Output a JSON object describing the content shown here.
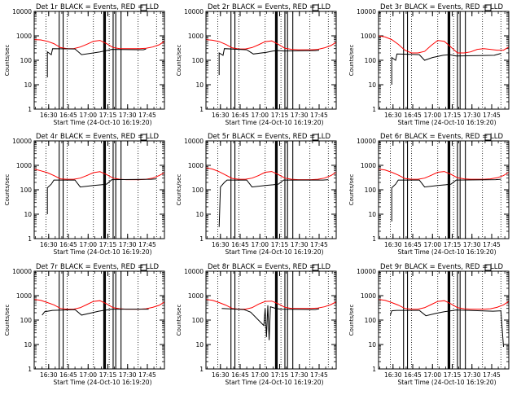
{
  "figure": {
    "ylabel": "Counts/sec",
    "xlabel": "Start Time (24-Oct-10 16:19:20)",
    "legend_text": "BLACK = Events, RED = LLD",
    "colors": {
      "events": "#000000",
      "lld": "#ff0000",
      "axes": "#000000",
      "background": "#ffffff"
    },
    "y_scale": "log"
  },
  "panels": [
    {
      "title": "Det 1r"
    },
    {
      "title": "Det 2r"
    },
    {
      "title": "Det 3r"
    },
    {
      "title": "Det 4r"
    },
    {
      "title": "Det 5r"
    },
    {
      "title": "Det 6r"
    },
    {
      "title": "Det 7r"
    },
    {
      "title": "Det 8r"
    },
    {
      "title": "Det 9r"
    }
  ],
  "chart_data": {
    "type": "line",
    "y_scale": "log",
    "ylim": [
      1,
      10000
    ],
    "xlim": [
      "16:19",
      "17:58"
    ],
    "x_ticks": [
      "16:30",
      "16:45",
      "17:00",
      "17:15",
      "17:30",
      "17:45"
    ],
    "y_ticks": [
      "1",
      "10",
      "100",
      "1000",
      "10000"
    ],
    "series": [
      {
        "name": "Events",
        "color": "#000000"
      },
      {
        "name": "LLD",
        "color": "#ff0000"
      }
    ],
    "lld_x": [
      "16:19",
      "16:24",
      "16:29",
      "16:34",
      "16:39",
      "16:44",
      "16:49",
      "16:54",
      "16:59",
      "17:04",
      "17:09",
      "17:14",
      "17:19",
      "17:24",
      "17:29",
      "17:34",
      "17:39",
      "17:44",
      "17:49",
      "17:54",
      "17:58"
    ],
    "lld": [
      [
        700,
        680,
        600,
        480,
        330,
        300,
        300,
        350,
        450,
        600,
        650,
        480,
        330,
        300,
        300,
        300,
        300,
        310,
        350,
        430,
        600
      ],
      [
        700,
        660,
        580,
        450,
        320,
        290,
        290,
        330,
        430,
        580,
        620,
        450,
        310,
        280,
        270,
        270,
        270,
        280,
        320,
        400,
        550
      ],
      [
        1000,
        900,
        700,
        450,
        260,
        200,
        200,
        230,
        400,
        650,
        600,
        350,
        200,
        200,
        220,
        280,
        300,
        280,
        260,
        260,
        350
      ],
      [
        700,
        600,
        500,
        380,
        280,
        270,
        270,
        300,
        380,
        500,
        550,
        420,
        300,
        270,
        260,
        260,
        260,
        270,
        300,
        380,
        500
      ],
      [
        800,
        700,
        550,
        400,
        290,
        270,
        270,
        300,
        380,
        520,
        560,
        420,
        300,
        270,
        260,
        260,
        260,
        270,
        300,
        380,
        520
      ],
      [
        700,
        640,
        520,
        400,
        290,
        270,
        270,
        300,
        390,
        520,
        560,
        430,
        310,
        280,
        270,
        270,
        270,
        280,
        310,
        380,
        520
      ],
      [
        700,
        640,
        520,
        420,
        300,
        280,
        280,
        320,
        430,
        580,
        620,
        460,
        320,
        290,
        280,
        280,
        280,
        290,
        330,
        400,
        550
      ],
      [
        700,
        640,
        520,
        410,
        300,
        280,
        280,
        320,
        450,
        580,
        600,
        460,
        330,
        300,
        300,
        300,
        300,
        310,
        350,
        430,
        560
      ],
      [
        700,
        640,
        520,
        410,
        300,
        280,
        280,
        320,
        430,
        580,
        620,
        460,
        320,
        290,
        280,
        280,
        280,
        290,
        330,
        420,
        580
      ]
    ],
    "events": [
      [
        [
          "16:29",
          20
        ],
        [
          "16:29",
          220
        ],
        [
          "16:32",
          170
        ],
        [
          "16:33",
          300
        ],
        [
          "16:50",
          290
        ],
        [
          "16:55",
          170
        ],
        [
          "17:04",
          200
        ],
        [
          "17:09",
          220
        ],
        [
          "17:14",
          250
        ],
        [
          "17:18",
          280
        ],
        [
          "17:42",
          270
        ],
        [
          "17:44",
          290
        ]
      ],
      [
        [
          "16:29",
          25
        ],
        [
          "16:29",
          200
        ],
        [
          "16:32",
          160
        ],
        [
          "16:33",
          300
        ],
        [
          "16:50",
          270
        ],
        [
          "16:55",
          180
        ],
        [
          "17:05",
          210
        ],
        [
          "17:10",
          240
        ],
        [
          "17:14",
          250
        ],
        [
          "17:18",
          240
        ],
        [
          "17:42",
          250
        ],
        [
          "17:45",
          260
        ]
      ],
      [
        [
          "16:29",
          10
        ],
        [
          "16:29",
          130
        ],
        [
          "16:32",
          100
        ],
        [
          "16:33",
          180
        ],
        [
          "16:50",
          170
        ],
        [
          "16:54",
          100
        ],
        [
          "17:00",
          130
        ],
        [
          "17:08",
          160
        ],
        [
          "17:13",
          170
        ],
        [
          "17:18",
          150
        ],
        [
          "17:47",
          160
        ],
        [
          "17:52",
          190
        ]
      ],
      [
        [
          "16:29",
          10
        ],
        [
          "16:29",
          120
        ],
        [
          "16:32",
          170
        ],
        [
          "16:34",
          250
        ],
        [
          "16:50",
          250
        ],
        [
          "16:54",
          130
        ],
        [
          "17:04",
          150
        ],
        [
          "17:10",
          160
        ],
        [
          "17:14",
          170
        ],
        [
          "17:18",
          260
        ],
        [
          "17:48",
          270
        ],
        [
          "17:52",
          280
        ]
      ],
      [
        [
          "16:29",
          3
        ],
        [
          "16:30",
          130
        ],
        [
          "16:33",
          200
        ],
        [
          "16:35",
          250
        ],
        [
          "16:50",
          250
        ],
        [
          "16:54",
          130
        ],
        [
          "17:04",
          150
        ],
        [
          "17:10",
          160
        ],
        [
          "17:14",
          170
        ],
        [
          "17:18",
          250
        ],
        [
          "17:48",
          250
        ],
        [
          "17:52",
          260
        ]
      ],
      [
        [
          "16:29",
          5
        ],
        [
          "16:29",
          120
        ],
        [
          "16:32",
          170
        ],
        [
          "16:34",
          250
        ],
        [
          "16:50",
          250
        ],
        [
          "16:54",
          130
        ],
        [
          "17:04",
          150
        ],
        [
          "17:10",
          160
        ],
        [
          "17:14",
          170
        ],
        [
          "17:18",
          250
        ],
        [
          "17:48",
          260
        ],
        [
          "17:52",
          270
        ]
      ],
      [
        [
          "16:25",
          160
        ],
        [
          "16:27",
          220
        ],
        [
          "16:33",
          250
        ],
        [
          "16:50",
          270
        ],
        [
          "16:55",
          160
        ],
        [
          "17:03",
          200
        ],
        [
          "17:08",
          230
        ],
        [
          "17:14",
          260
        ],
        [
          "17:18",
          280
        ],
        [
          "17:46",
          280
        ]
      ],
      [
        [
          "16:31",
          300
        ],
        [
          "16:48",
          270
        ],
        [
          "16:53",
          210
        ],
        [
          "17:03",
          60
        ],
        [
          "17:04",
          300
        ],
        [
          "17:05",
          20
        ],
        [
          "17:06",
          400
        ],
        [
          "17:07",
          15
        ],
        [
          "17:08",
          350
        ],
        [
          "17:12",
          300
        ],
        [
          "17:16",
          280
        ],
        [
          "17:42",
          270
        ],
        [
          "17:45",
          290
        ]
      ],
      [
        [
          "16:28",
          160
        ],
        [
          "16:29",
          240
        ],
        [
          "16:33",
          250
        ],
        [
          "16:50",
          250
        ],
        [
          "16:55",
          150
        ],
        [
          "17:03",
          190
        ],
        [
          "17:09",
          220
        ],
        [
          "17:14",
          240
        ],
        [
          "17:18",
          260
        ],
        [
          "17:46",
          230
        ],
        [
          "17:52",
          240
        ],
        [
          "17:54",
          8
        ]
      ]
    ],
    "solid_vlines": [
      [
        "16:38",
        "16:41",
        "17:12",
        "17:13",
        "17:19",
        "17:21",
        "17:25"
      ],
      [
        "16:38",
        "16:41",
        "17:12",
        "17:13",
        "17:19",
        "17:21",
        "17:25"
      ],
      [
        "16:38",
        "16:41",
        "17:12",
        "17:13",
        "17:19",
        "17:21",
        "17:25"
      ],
      [
        "16:38",
        "16:41",
        "17:12",
        "17:13",
        "17:19",
        "17:21",
        "17:25"
      ],
      [
        "16:38",
        "16:41",
        "17:12",
        "17:13",
        "17:19",
        "17:21",
        "17:25"
      ],
      [
        "16:38",
        "16:41",
        "17:12",
        "17:13",
        "17:19",
        "17:21",
        "17:25"
      ],
      [
        "16:38",
        "16:41",
        "17:12",
        "17:13",
        "17:19",
        "17:21",
        "17:25"
      ],
      [
        "16:38",
        "16:41",
        "17:12",
        "17:13",
        "17:19",
        "17:21",
        "17:25"
      ],
      [
        "16:38",
        "16:41",
        "17:12",
        "17:13",
        "17:19",
        "17:21",
        "17:25"
      ]
    ],
    "dotted_vlines": [
      [
        "16:28",
        "16:44",
        "17:04",
        "17:16",
        "17:38",
        "17:52"
      ],
      [
        "16:28",
        "16:44",
        "17:04",
        "17:16",
        "17:38",
        "17:52"
      ],
      [
        "16:28",
        "16:44",
        "17:04",
        "17:16",
        "17:38",
        "17:52"
      ],
      [
        "16:28",
        "16:44",
        "17:04",
        "17:16",
        "17:38",
        "17:52"
      ],
      [
        "16:28",
        "16:44",
        "17:04",
        "17:16",
        "17:38",
        "17:52"
      ],
      [
        "16:28",
        "16:44",
        "17:04",
        "17:16",
        "17:38",
        "17:52"
      ],
      [
        "16:28",
        "16:44",
        "17:04",
        "17:16",
        "17:38",
        "17:52"
      ],
      [
        "16:28",
        "16:44",
        "17:04",
        "17:16",
        "17:38",
        "17:52"
      ],
      [
        "16:28",
        "16:44",
        "17:04",
        "17:16",
        "17:38",
        "17:52"
      ]
    ]
  }
}
